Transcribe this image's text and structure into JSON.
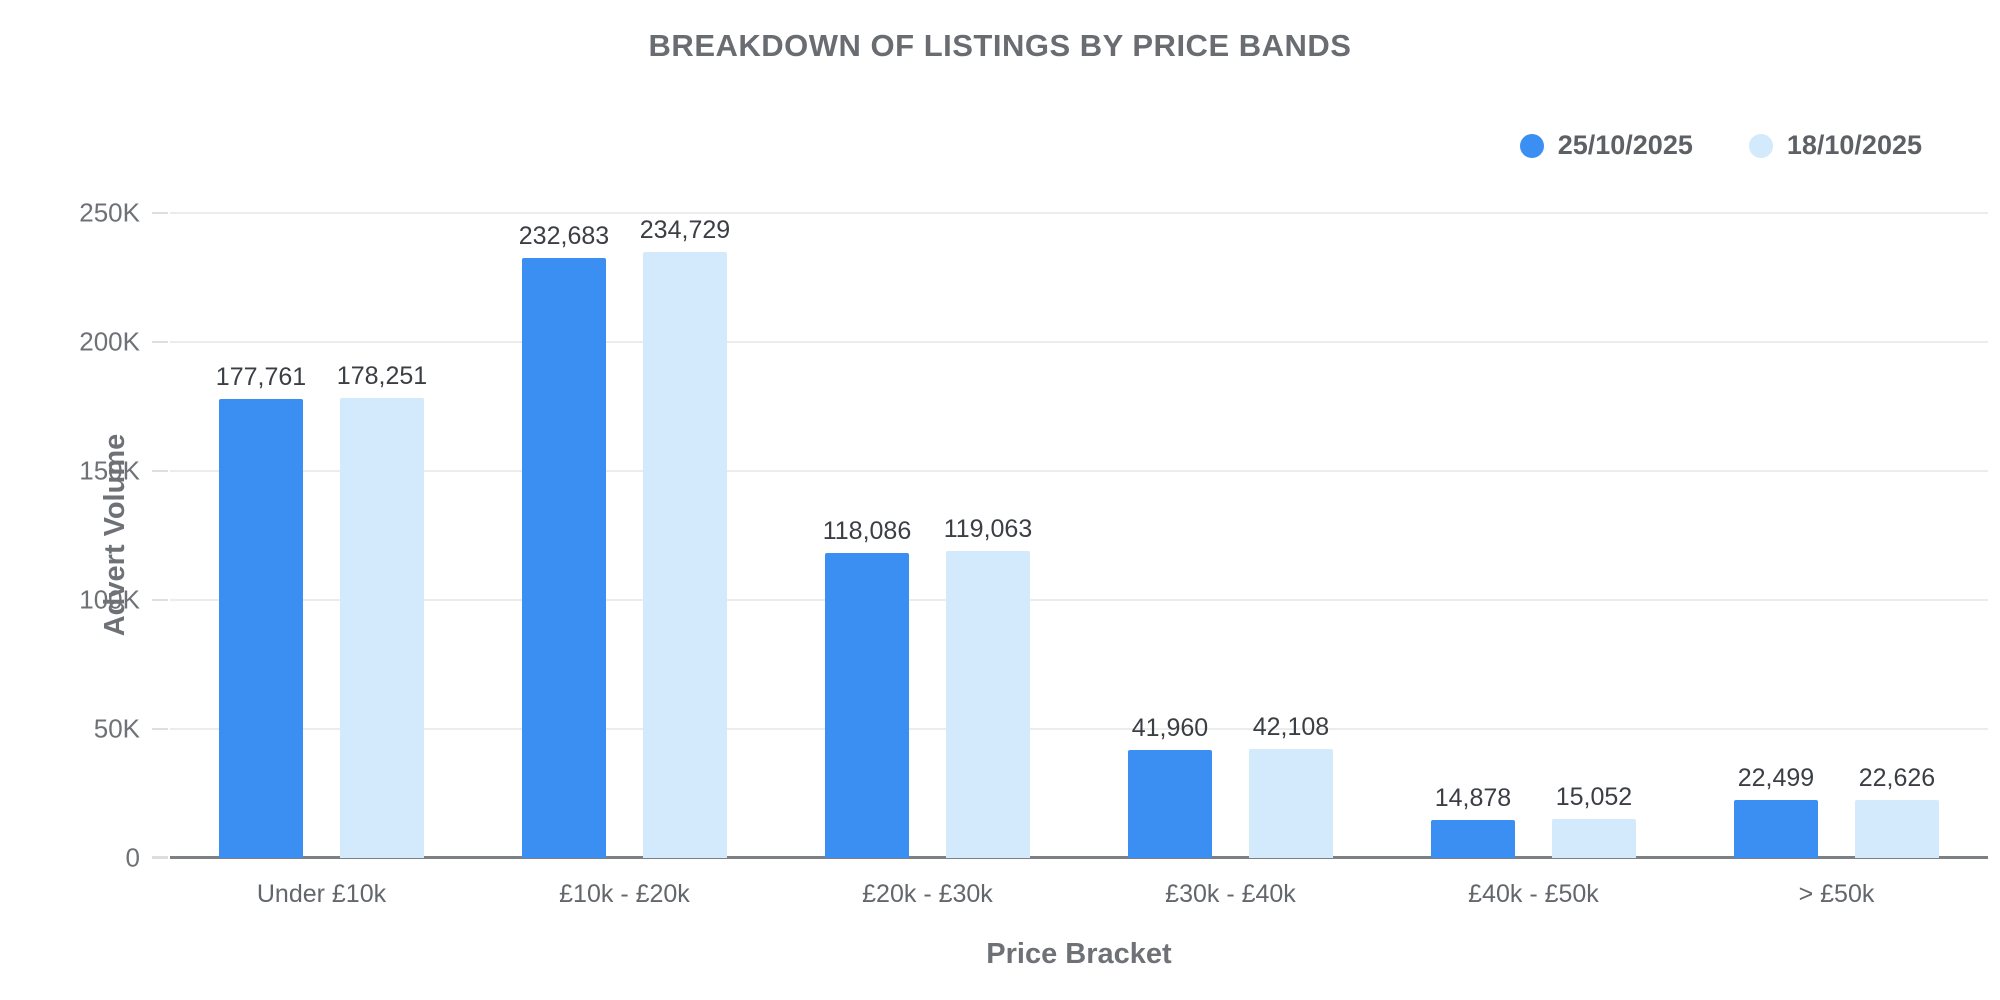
{
  "chart": {
    "title": "BREAKDOWN OF LISTINGS BY PRICE BANDS",
    "y_axis_title": "Advert Volume",
    "x_axis_title": "Price Bracket"
  },
  "chart_data": {
    "type": "bar",
    "title": "BREAKDOWN OF LISTINGS BY PRICE BANDS",
    "xlabel": "Price Bracket",
    "ylabel": "Advert Volume",
    "categories": [
      "Under £10k",
      "£10k - £20k",
      "£20k - £30k",
      "£30k - £40k",
      "£40k - £50k",
      "> £50k"
    ],
    "series": [
      {
        "name": "25/10/2025",
        "color": "#3B8FF2",
        "values": [
          177761,
          232683,
          118086,
          41960,
          14878,
          22499
        ]
      },
      {
        "name": "18/10/2025",
        "color": "#D2EAFB",
        "values": [
          178251,
          234729,
          119063,
          42108,
          15052,
          22626
        ]
      }
    ],
    "ylim": [
      0,
      250000
    ],
    "y_ticks": [
      "0",
      "50K",
      "100K",
      "150K",
      "200K",
      "250K"
    ],
    "grid": true,
    "legend_position": "top-right",
    "colors": {
      "value_label": "#3b3e44",
      "axis_text": "#6e7277",
      "gridline": "#ececec",
      "axis_line": "#7c8085"
    }
  }
}
